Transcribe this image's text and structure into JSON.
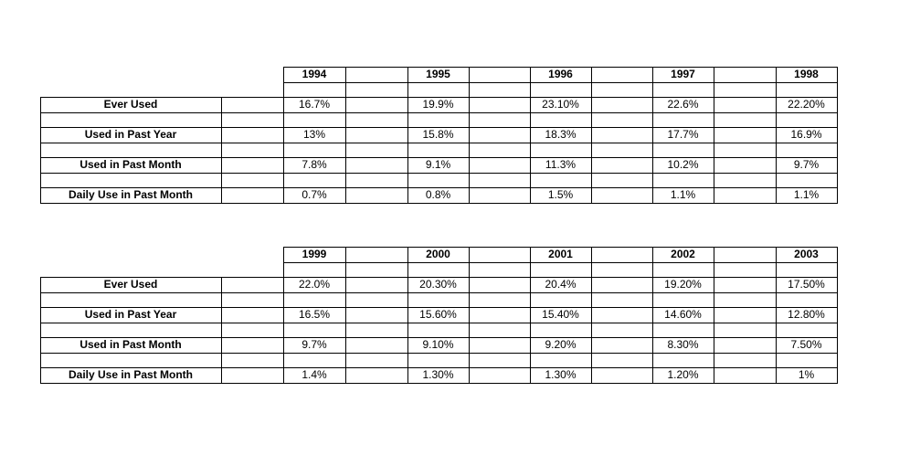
{
  "tables": [
    {
      "years": [
        "1994",
        "1995",
        "1996",
        "1997",
        "1998"
      ],
      "rows": [
        {
          "label": "Ever Used",
          "values": [
            "16.7%",
            "19.9%",
            "23.10%",
            "22.6%",
            "22.20%"
          ]
        },
        {
          "label": "Used in Past Year",
          "values": [
            "13%",
            "15.8%",
            "18.3%",
            "17.7%",
            "16.9%"
          ]
        },
        {
          "label": "Used in Past Month",
          "values": [
            "7.8%",
            "9.1%",
            "11.3%",
            "10.2%",
            "9.7%"
          ]
        },
        {
          "label": "Daily Use in Past Month",
          "values": [
            "0.7%",
            "0.8%",
            "1.5%",
            "1.1%",
            "1.1%"
          ]
        }
      ]
    },
    {
      "years": [
        "1999",
        "2000",
        "2001",
        "2002",
        "2003"
      ],
      "rows": [
        {
          "label": "Ever Used",
          "values": [
            "22.0%",
            "20.30%",
            "20.4%",
            "19.20%",
            "17.50%"
          ]
        },
        {
          "label": "Used in Past Year",
          "values": [
            "16.5%",
            "15.60%",
            "15.40%",
            "14.60%",
            "12.80%"
          ]
        },
        {
          "label": "Used in Past Month",
          "values": [
            "9.7%",
            "9.10%",
            "9.20%",
            "8.30%",
            "7.50%"
          ]
        },
        {
          "label": "Daily Use in Past Month",
          "values": [
            "1.4%",
            "1.30%",
            "1.30%",
            "1.20%",
            "1%"
          ]
        }
      ]
    }
  ]
}
